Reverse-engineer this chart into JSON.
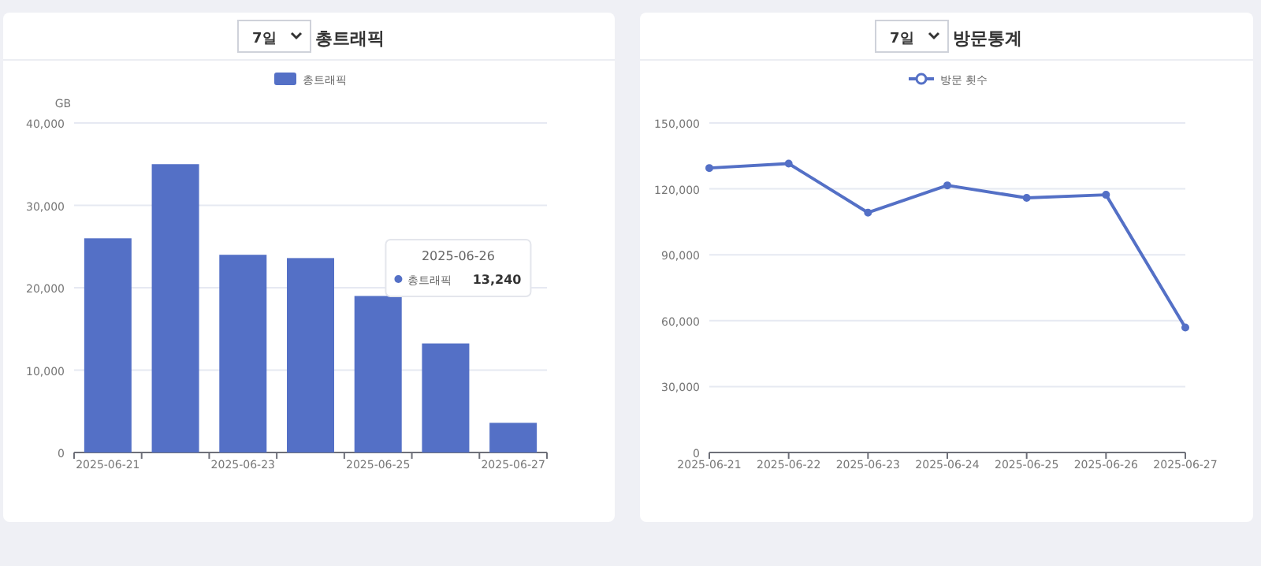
{
  "chart_data": [
    {
      "type": "bar",
      "title": "총트래픽",
      "subtitle": "7일",
      "ylabel": "GB",
      "categories": [
        "2025-06-21",
        null,
        "2025-06-23",
        null,
        "2025-06-25",
        null,
        "2025-06-27"
      ],
      "series": [
        {
          "name": "총트래픽",
          "color": "#5470c6",
          "values": [
            26000,
            35000,
            24000,
            23600,
            19000,
            13240,
            3600
          ]
        }
      ],
      "ylim": [
        0,
        40000
      ],
      "yticks": [
        {
          "value": 0,
          "label": "0"
        },
        {
          "value": 10000,
          "label": "10,000"
        },
        {
          "value": 20000,
          "label": "20,000"
        },
        {
          "value": 30000,
          "label": "30,000"
        },
        {
          "value": 40000,
          "label": "40,000"
        }
      ],
      "grid": "y",
      "legend": "top",
      "annotations": [
        "2025-06-26",
        "총트래픽",
        "13,240"
      ]
    },
    {
      "type": "line",
      "title": "방문통계",
      "subtitle": "7일",
      "categories": [
        "2025-06-21",
        "2025-06-22",
        "2025-06-23",
        "2025-06-24",
        "2025-06-25",
        "2025-06-26",
        "2025-06-27"
      ],
      "series": [
        {
          "name": "방문 횟수",
          "color": "#5470c6",
          "values": [
            129500,
            131500,
            109200,
            121600,
            115900,
            117300,
            56900
          ]
        }
      ],
      "ylim": [
        0,
        150000
      ],
      "yticks": [
        {
          "value": 0,
          "label": "0"
        },
        {
          "value": 30000,
          "label": "30,000"
        },
        {
          "value": 60000,
          "label": "60,000"
        },
        {
          "value": 90000,
          "label": "90,000"
        },
        {
          "value": 120000,
          "label": "120,000"
        },
        {
          "value": 150000,
          "label": "150,000"
        }
      ],
      "grid": "y",
      "legend": "top",
      "marker": "circle"
    }
  ]
}
